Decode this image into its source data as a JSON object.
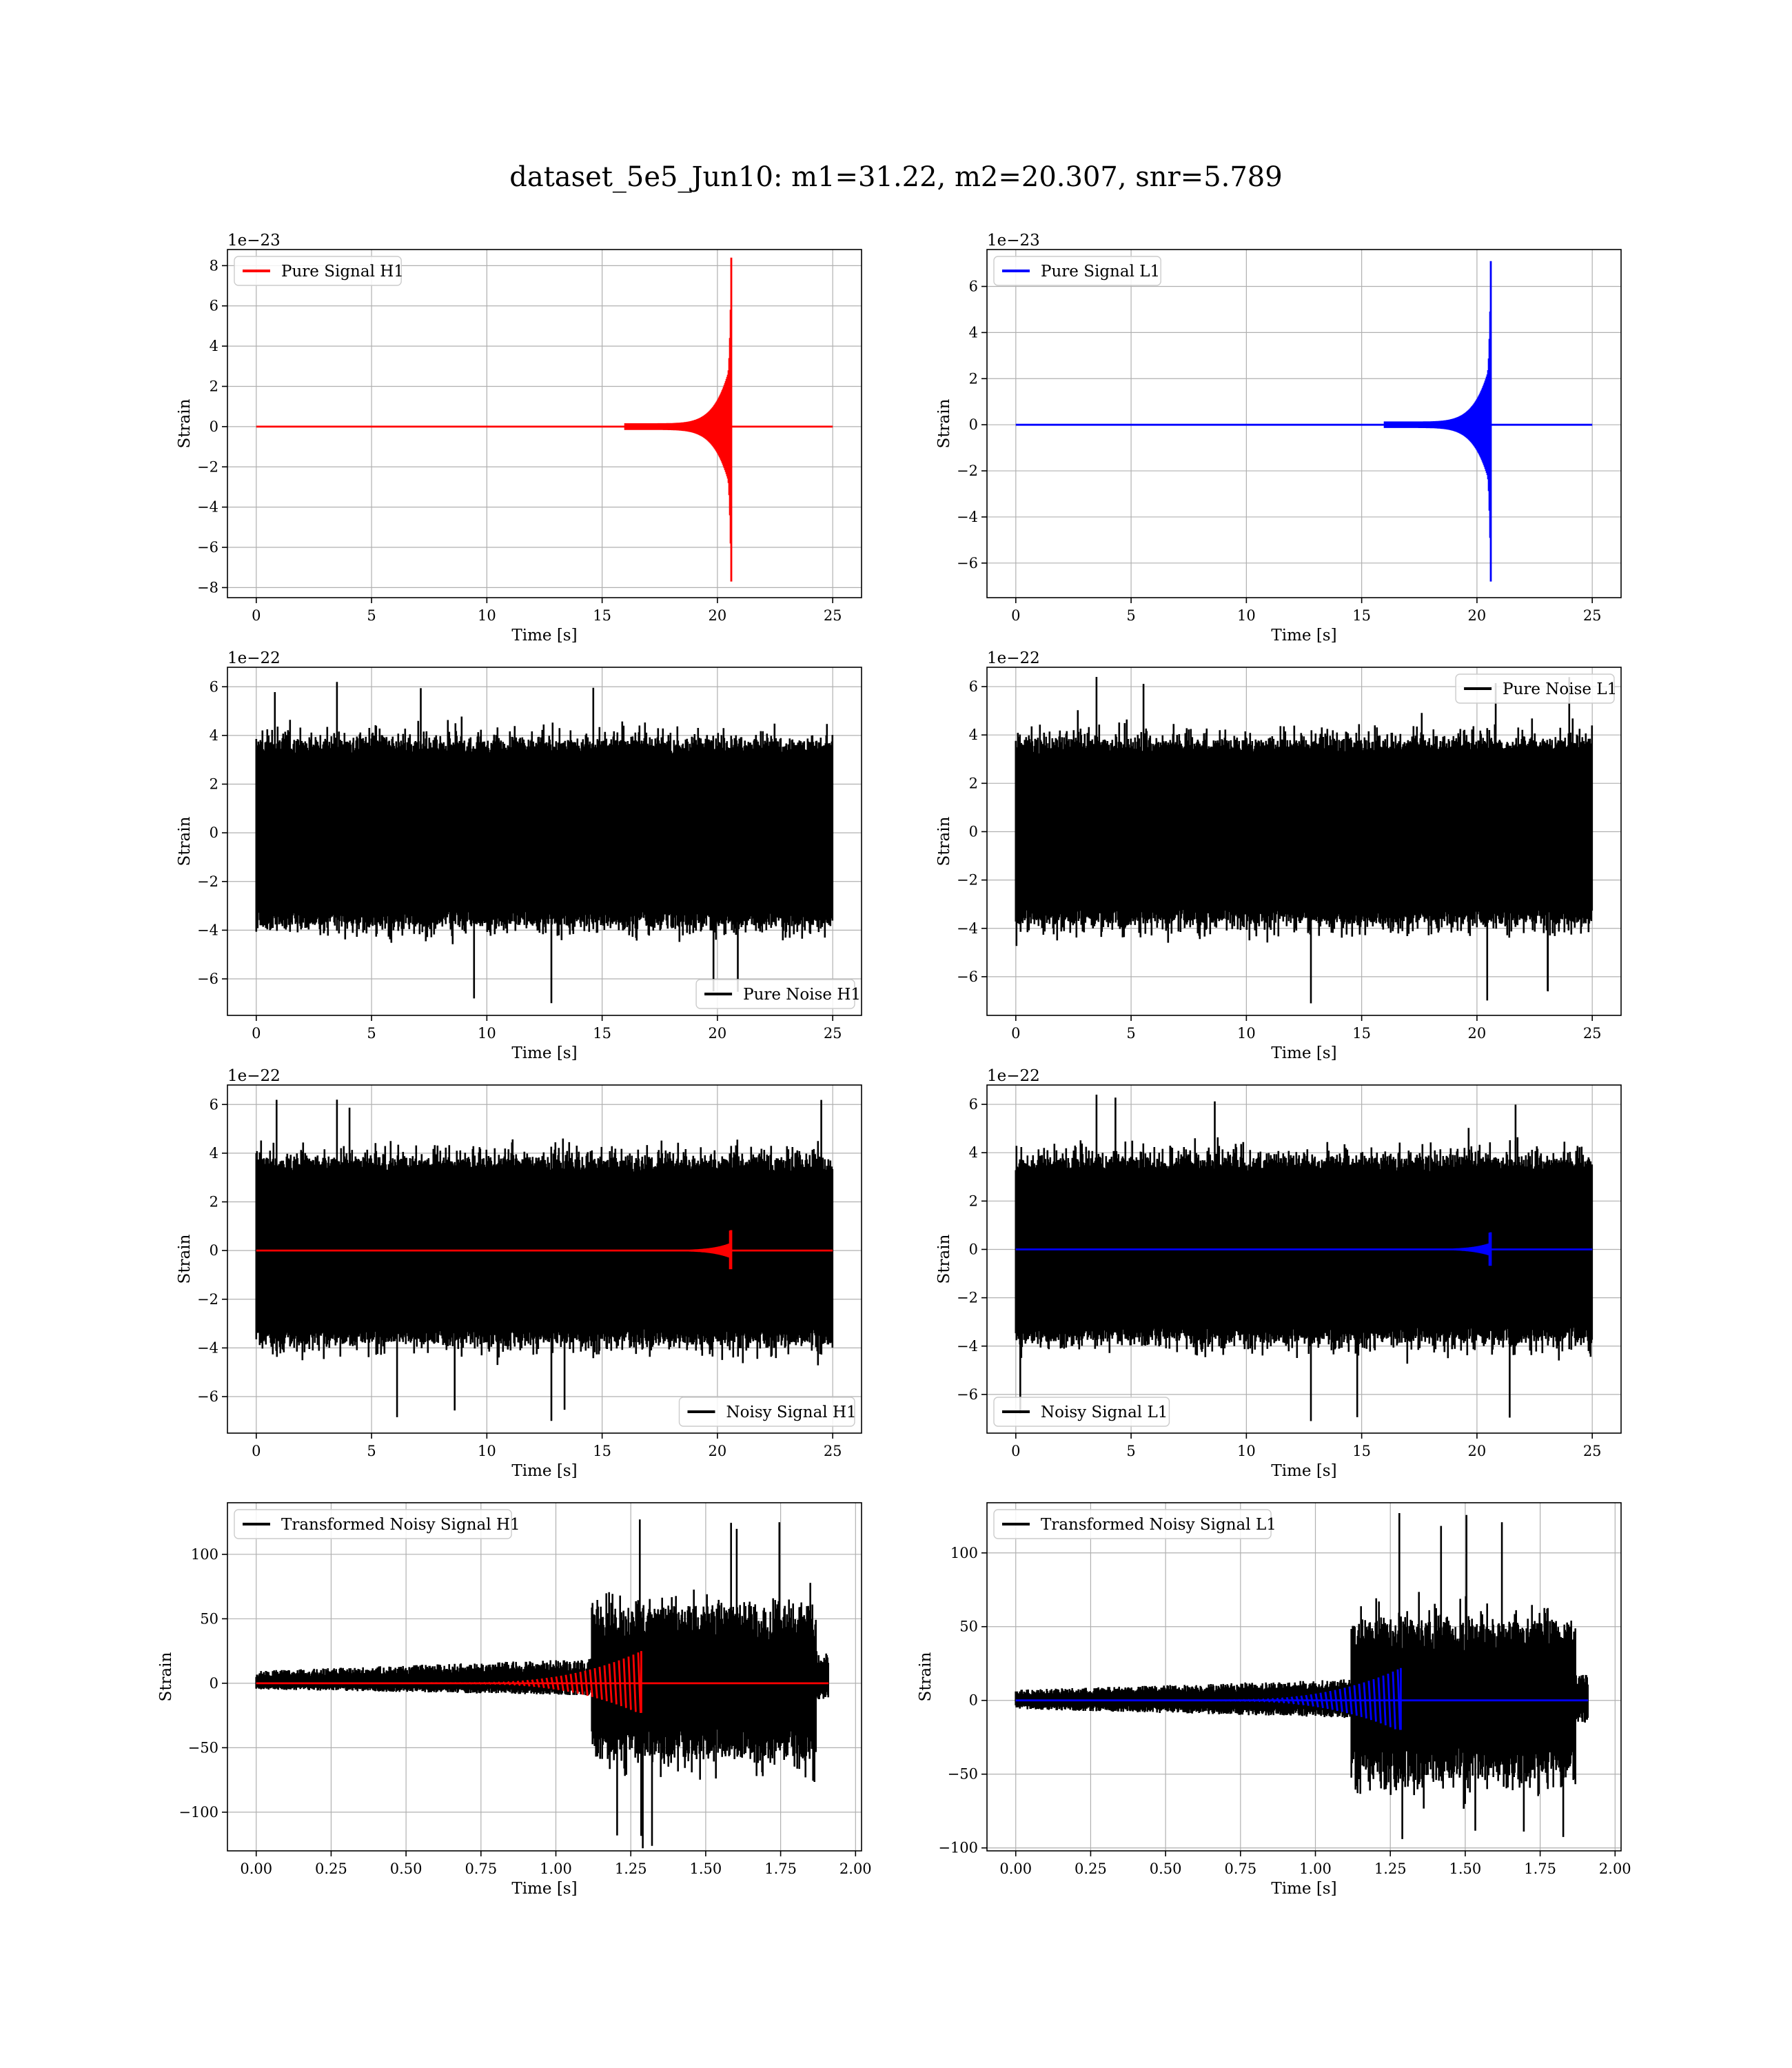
{
  "figure_title": "dataset_5e5_Jun10: m1=31.22, m2=20.307, snr=5.789",
  "colors": {
    "h1": "#ff0000",
    "l1": "#0000ff",
    "noise": "#000000"
  },
  "chart_data": [
    {
      "id": "pure-signal-h1",
      "type": "line",
      "kind": "chirp",
      "offset_text": "1e−23",
      "xlabel": "Time [s]",
      "ylabel": "Strain",
      "xlim": [
        -1.25,
        26.25
      ],
      "ylim": [
        -8.5,
        8.8
      ],
      "xticks": [
        0,
        5,
        10,
        15,
        20,
        25
      ],
      "xtick_labels": [
        "0",
        "5",
        "10",
        "15",
        "20",
        "25"
      ],
      "yticks": [
        -8,
        -6,
        -4,
        -2,
        0,
        2,
        4,
        6,
        8
      ],
      "ytick_labels": [
        "−8",
        "−6",
        "−4",
        "−2",
        "0",
        "2",
        "4",
        "6",
        "8"
      ],
      "legend": {
        "position": "upper left"
      },
      "series": [
        {
          "name": "Pure Signal H1",
          "color": "#ff0000",
          "x_range": [
            0,
            25
          ],
          "peak_time": 20.6,
          "peak_max": 8.4,
          "peak_min": -7.7,
          "envelope_amp": [
            0.02,
            1.0,
            2.2,
            3.2,
            8.4
          ]
        }
      ]
    },
    {
      "id": "pure-signal-l1",
      "type": "line",
      "kind": "chirp",
      "offset_text": "1e−23",
      "xlabel": "Time [s]",
      "ylabel": "Strain",
      "xlim": [
        -1.25,
        26.25
      ],
      "ylim": [
        -7.5,
        7.6
      ],
      "xticks": [
        0,
        5,
        10,
        15,
        20,
        25
      ],
      "xtick_labels": [
        "0",
        "5",
        "10",
        "15",
        "20",
        "25"
      ],
      "yticks": [
        -6,
        -4,
        -2,
        0,
        2,
        4,
        6
      ],
      "ytick_labels": [
        "−6",
        "−4",
        "−2",
        "0",
        "2",
        "4",
        "6"
      ],
      "legend": {
        "position": "upper left"
      },
      "series": [
        {
          "name": "Pure Signal L1",
          "color": "#0000ff",
          "x_range": [
            0,
            25
          ],
          "peak_time": 20.6,
          "peak_max": 7.1,
          "peak_min": -6.8,
          "envelope_amp": [
            0.02,
            0.9,
            1.9,
            2.8,
            7.1
          ]
        }
      ]
    },
    {
      "id": "pure-noise-h1",
      "type": "line",
      "kind": "noise",
      "offset_text": "1e−22",
      "xlabel": "Time [s]",
      "ylabel": "Strain",
      "xlim": [
        -1.25,
        26.25
      ],
      "ylim": [
        -7.5,
        6.8
      ],
      "xticks": [
        0,
        5,
        10,
        15,
        20,
        25
      ],
      "xtick_labels": [
        "0",
        "5",
        "10",
        "15",
        "20",
        "25"
      ],
      "yticks": [
        -6,
        -4,
        -2,
        0,
        2,
        4,
        6
      ],
      "ytick_labels": [
        "−6",
        "−4",
        "−2",
        "0",
        "2",
        "4",
        "6"
      ],
      "legend": {
        "position": "lower right"
      },
      "series": [
        {
          "name": "Pure Noise H1",
          "color": "#000000",
          "x_range": [
            0,
            25
          ],
          "band": [
            -3.8,
            3.8
          ],
          "max": 6.2,
          "min": -7.0
        }
      ]
    },
    {
      "id": "pure-noise-l1",
      "type": "line",
      "kind": "noise",
      "offset_text": "1e−22",
      "xlabel": "Time [s]",
      "ylabel": "Strain",
      "xlim": [
        -1.25,
        26.25
      ],
      "ylim": [
        -7.6,
        6.8
      ],
      "xticks": [
        0,
        5,
        10,
        15,
        20,
        25
      ],
      "xtick_labels": [
        "0",
        "5",
        "10",
        "15",
        "20",
        "25"
      ],
      "yticks": [
        -6,
        -4,
        -2,
        0,
        2,
        4,
        6
      ],
      "ytick_labels": [
        "−6",
        "−4",
        "−2",
        "0",
        "2",
        "4",
        "6"
      ],
      "legend": {
        "position": "upper right"
      },
      "series": [
        {
          "name": "Pure Noise L1",
          "color": "#000000",
          "x_range": [
            0,
            25
          ],
          "band": [
            -3.8,
            3.8
          ],
          "max": 6.4,
          "min": -7.1
        }
      ]
    },
    {
      "id": "noisy-signal-h1",
      "type": "line",
      "kind": "noisy",
      "offset_text": "1e−22",
      "xlabel": "Time [s]",
      "ylabel": "Strain",
      "xlim": [
        -1.25,
        26.25
      ],
      "ylim": [
        -7.5,
        6.8
      ],
      "xticks": [
        0,
        5,
        10,
        15,
        20,
        25
      ],
      "xtick_labels": [
        "0",
        "5",
        "10",
        "15",
        "20",
        "25"
      ],
      "yticks": [
        -6,
        -4,
        -2,
        0,
        2,
        4,
        6
      ],
      "ytick_labels": [
        "−6",
        "−4",
        "−2",
        "0",
        "2",
        "4",
        "6"
      ],
      "legend": {
        "position": "lower right"
      },
      "series": [
        {
          "name": "Noisy Signal H1",
          "color": "#000000",
          "x_range": [
            0,
            25
          ],
          "band": [
            -3.8,
            3.8
          ],
          "max": 6.2,
          "min": -7.0
        },
        {
          "color": "#ff0000",
          "x_range": [
            0,
            25
          ],
          "peak_time": 20.6,
          "peak_max": 0.84,
          "peak_min": -0.77
        }
      ]
    },
    {
      "id": "noisy-signal-l1",
      "type": "line",
      "kind": "noisy",
      "offset_text": "1e−22",
      "xlabel": "Time [s]",
      "ylabel": "Strain",
      "xlim": [
        -1.25,
        26.25
      ],
      "ylim": [
        -7.6,
        6.8
      ],
      "xticks": [
        0,
        5,
        10,
        15,
        20,
        25
      ],
      "xtick_labels": [
        "0",
        "5",
        "10",
        "15",
        "20",
        "25"
      ],
      "yticks": [
        -6,
        -4,
        -2,
        0,
        2,
        4,
        6
      ],
      "ytick_labels": [
        "−6",
        "−4",
        "−2",
        "0",
        "2",
        "4",
        "6"
      ],
      "legend": {
        "position": "lower left"
      },
      "series": [
        {
          "name": "Noisy Signal L1",
          "color": "#000000",
          "x_range": [
            0,
            25
          ],
          "band": [
            -3.8,
            3.8
          ],
          "max": 6.4,
          "min": -7.1
        },
        {
          "color": "#0000ff",
          "x_range": [
            0,
            25
          ],
          "peak_time": 20.6,
          "peak_max": 0.71,
          "peak_min": -0.68
        }
      ]
    },
    {
      "id": "transformed-noisy-signal-h1",
      "type": "line",
      "kind": "transformed",
      "offset_text": "",
      "xlabel": "Time [s]",
      "ylabel": "Strain",
      "xlim": [
        -0.096,
        2.02
      ],
      "ylim": [
        -130,
        140
      ],
      "xticks": [
        0,
        0.25,
        0.5,
        0.75,
        1.0,
        1.25,
        1.5,
        1.75,
        2.0
      ],
      "xtick_labels": [
        "0.00",
        "0.25",
        "0.50",
        "0.75",
        "1.00",
        "1.25",
        "1.50",
        "1.75",
        "2.00"
      ],
      "yticks": [
        -100,
        -50,
        0,
        50,
        100
      ],
      "ytick_labels": [
        "−100",
        "−50",
        "0",
        "50",
        "100"
      ],
      "legend": {
        "position": "upper left"
      },
      "series": [
        {
          "name": "Transformed Noisy Signal H1",
          "color": "#000000",
          "x_range": [
            0,
            1.91
          ],
          "quiet_band": [
            -8,
            16
          ],
          "loud_start": 1.12,
          "loud_end": 1.87,
          "loud_band": [
            -60,
            60
          ],
          "max": 127,
          "min": -128
        },
        {
          "color": "#ff0000",
          "x_range": [
            0,
            1.91
          ],
          "peak_time": 1.285,
          "peak_max": 25,
          "peak_min": -23
        }
      ]
    },
    {
      "id": "transformed-noisy-signal-l1",
      "type": "line",
      "kind": "transformed",
      "offset_text": "",
      "xlabel": "Time [s]",
      "ylabel": "Strain",
      "xlim": [
        -0.096,
        2.02
      ],
      "ylim": [
        -102,
        134
      ],
      "xticks": [
        0,
        0.25,
        0.5,
        0.75,
        1.0,
        1.25,
        1.5,
        1.75,
        2.0
      ],
      "xtick_labels": [
        "0.00",
        "0.25",
        "0.50",
        "0.75",
        "1.00",
        "1.25",
        "1.50",
        "1.75",
        "2.00"
      ],
      "yticks": [
        -100,
        -50,
        0,
        50,
        100
      ],
      "ytick_labels": [
        "−100",
        "−50",
        "0",
        "50",
        "100"
      ],
      "legend": {
        "position": "upper left"
      },
      "series": [
        {
          "name": "Transformed Noisy Signal L1",
          "color": "#000000",
          "x_range": [
            0,
            1.91
          ],
          "quiet_band": [
            -10,
            12
          ],
          "loud_start": 1.12,
          "loud_end": 1.87,
          "loud_band": [
            -55,
            55
          ],
          "max": 127,
          "min": -94
        },
        {
          "color": "#0000ff",
          "x_range": [
            0,
            1.91
          ],
          "peak_time": 1.285,
          "peak_max": 22,
          "peak_min": -20
        }
      ]
    }
  ]
}
